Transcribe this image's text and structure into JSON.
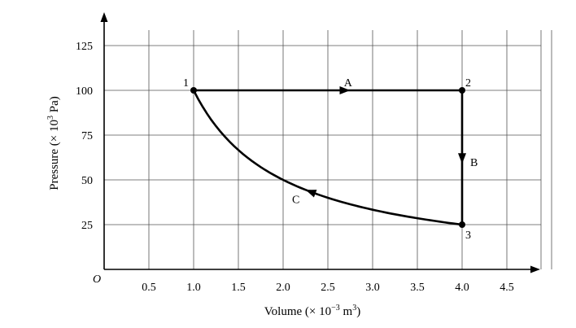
{
  "chart_data": {
    "type": "line",
    "title": "",
    "origin_label": "O",
    "xlabel": {
      "main": "Volume (× 10",
      "exp": "−3",
      "mid": " m",
      "unit_exp": "3",
      "tail": ")"
    },
    "ylabel": {
      "main": "Pressure (× 10",
      "exp": "3",
      "tail": " Pa)"
    },
    "xlim": [
      0,
      5.0
    ],
    "ylim": [
      0,
      135
    ],
    "grid": true,
    "x_ticks": [
      0.5,
      1.0,
      1.5,
      2.0,
      2.5,
      3.0,
      3.5,
      4.0,
      4.5
    ],
    "x_tick_labels": [
      "0.5",
      "1.0",
      "1.5",
      "2.0",
      "2.5",
      "3.0",
      "3.5",
      "4.0",
      "4.5"
    ],
    "y_ticks": [
      25,
      50,
      75,
      100,
      125
    ],
    "y_tick_labels": [
      "25",
      "50",
      "75",
      "100",
      "125"
    ],
    "points": [
      {
        "label": "1",
        "x": 1.0,
        "y": 100
      },
      {
        "label": "2",
        "x": 4.0,
        "y": 100
      },
      {
        "label": "3",
        "x": 4.0,
        "y": 25
      }
    ],
    "processes": [
      {
        "label": "A",
        "from": "1",
        "to": "2",
        "shape": "straight"
      },
      {
        "label": "B",
        "from": "2",
        "to": "3",
        "shape": "straight"
      },
      {
        "label": "C",
        "from": "3",
        "to": "1",
        "shape": "curve",
        "curve_points": [
          {
            "x": 4.0,
            "y": 25
          },
          {
            "x": 3.5,
            "y": 28.6
          },
          {
            "x": 3.0,
            "y": 33.3
          },
          {
            "x": 2.5,
            "y": 40
          },
          {
            "x": 2.0,
            "y": 50
          },
          {
            "x": 1.5,
            "y": 66.7
          },
          {
            "x": 1.2,
            "y": 83.3
          },
          {
            "x": 1.0,
            "y": 100
          }
        ]
      }
    ]
  }
}
